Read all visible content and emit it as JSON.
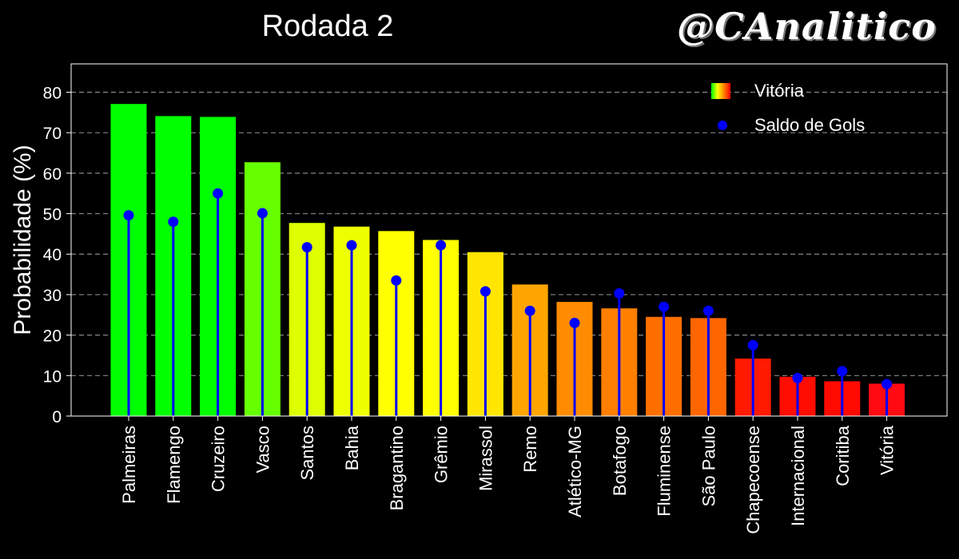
{
  "brand": "@CAnalitico",
  "legend": {
    "bars_label": "Vitória",
    "points_label": "Saldo de Gols"
  },
  "chart_data": {
    "type": "bar",
    "title": "Rodada 2",
    "xlabel": "",
    "ylabel": "Probabilidade (%)",
    "ylim": [
      0,
      87
    ],
    "yticks": [
      0,
      10,
      20,
      30,
      40,
      50,
      60,
      70,
      80
    ],
    "grid": "horizontal dashed",
    "legend_position": "top-right",
    "categories": [
      "Palmeiras",
      "Flamengo",
      "Cruzeiro",
      "Vasco",
      "Santos",
      "Bahia",
      "Bragantino",
      "Grêmio",
      "Mirassol",
      "Remo",
      "Atlético-MG",
      "Botafogo",
      "Fluminense",
      "São Paulo",
      "Chapecoense",
      "Internacional",
      "Coritiba",
      "Vitória"
    ],
    "series": [
      {
        "name": "Vitória",
        "kind": "bar",
        "values": [
          77.1,
          74.1,
          73.9,
          62.7,
          47.7,
          46.8,
          45.7,
          43.5,
          40.5,
          32.5,
          28.2,
          26.6,
          24.5,
          24.2,
          14.2,
          9.7,
          8.6,
          8.0
        ],
        "colors": [
          "#00ff00",
          "#00ff00",
          "#00ff00",
          "#66ff00",
          "#ddff00",
          "#eeff00",
          "#ffff00",
          "#ffff00",
          "#ffe500",
          "#ffa500",
          "#ff8c00",
          "#ff7f00",
          "#ff6f00",
          "#ff6600",
          "#ff1a00",
          "#ff0d00",
          "#ff0a00",
          "#ff0a10"
        ]
      },
      {
        "name": "Saldo de Gols",
        "kind": "stem",
        "color": "#0000ff",
        "values": [
          49.6,
          48.0,
          55.0,
          50.1,
          41.7,
          42.2,
          33.5,
          42.2,
          30.8,
          26.0,
          23.0,
          30.3,
          27.0,
          26.0,
          17.5,
          9.4,
          11.1,
          7.9
        ]
      }
    ]
  }
}
